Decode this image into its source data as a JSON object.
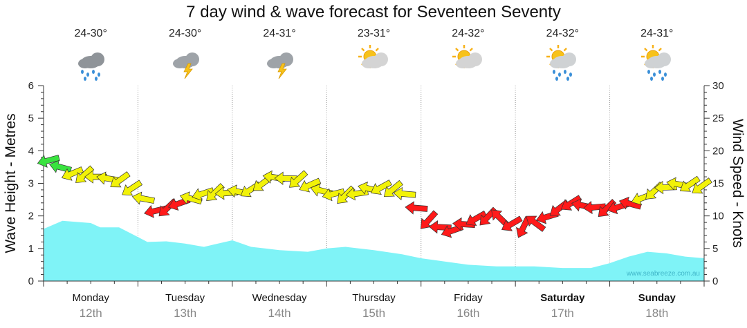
{
  "title": "7 day wind & wave forecast for Seventeen Seventy",
  "watermark": "www.seabreeze.com.au",
  "forecast": [
    {
      "temp": "24-30°",
      "icon": "rain-cloud-icon"
    },
    {
      "temp": "24-30°",
      "icon": "thunderstorm-icon"
    },
    {
      "temp": "24-31°",
      "icon": "thunderstorm-icon"
    },
    {
      "temp": "23-31°",
      "icon": "partly-sunny-icon"
    },
    {
      "temp": "24-32°",
      "icon": "partly-sunny-icon"
    },
    {
      "temp": "24-32°",
      "icon": "sun-shower-icon"
    },
    {
      "temp": "24-31°",
      "icon": "sun-shower-icon"
    }
  ],
  "chart_data": {
    "type": "area",
    "y_left_label": "Wave Height - Metres",
    "y_right_label": "Wind Speed - Knots",
    "ylim_left": [
      0,
      6
    ],
    "ylim_right": [
      0,
      30
    ],
    "y_left_ticks": [
      "0",
      "1",
      "2",
      "3",
      "4",
      "5",
      "6"
    ],
    "y_right_ticks": [
      "0",
      "5",
      "10",
      "15",
      "20",
      "25",
      "30"
    ],
    "days": [
      {
        "name": "Monday",
        "date": "12th",
        "bold": false
      },
      {
        "name": "Tuesday",
        "date": "13th",
        "bold": false
      },
      {
        "name": "Wednesday",
        "date": "14th",
        "bold": false
      },
      {
        "name": "Thursday",
        "date": "15th",
        "bold": false
      },
      {
        "name": "Friday",
        "date": "16th",
        "bold": false
      },
      {
        "name": "Saturday",
        "date": "17th",
        "bold": true
      },
      {
        "name": "Sunday",
        "date": "18th",
        "bold": true
      }
    ],
    "x_range_days": [
      0,
      7
    ],
    "wave_series": {
      "name": "Wave Height",
      "color": "#7ff3f7",
      "points": [
        [
          0,
          1.6
        ],
        [
          0.2,
          1.85
        ],
        [
          0.5,
          1.78
        ],
        [
          0.6,
          1.65
        ],
        [
          0.8,
          1.65
        ],
        [
          1.0,
          1.35
        ],
        [
          1.1,
          1.2
        ],
        [
          1.3,
          1.22
        ],
        [
          1.5,
          1.15
        ],
        [
          1.7,
          1.05
        ],
        [
          1.8,
          1.12
        ],
        [
          2.0,
          1.25
        ],
        [
          2.2,
          1.05
        ],
        [
          2.5,
          0.95
        ],
        [
          2.8,
          0.9
        ],
        [
          3.0,
          1.0
        ],
        [
          3.2,
          1.05
        ],
        [
          3.5,
          0.95
        ],
        [
          3.8,
          0.82
        ],
        [
          4.0,
          0.7
        ],
        [
          4.5,
          0.5
        ],
        [
          4.8,
          0.45
        ],
        [
          5.0,
          0.45
        ],
        [
          5.2,
          0.45
        ],
        [
          5.5,
          0.4
        ],
        [
          5.8,
          0.4
        ],
        [
          6.0,
          0.55
        ],
        [
          6.2,
          0.75
        ],
        [
          6.4,
          0.9
        ],
        [
          6.6,
          0.85
        ],
        [
          6.8,
          0.75
        ],
        [
          7.0,
          0.7
        ]
      ]
    },
    "wind_series": {
      "name": "Wind Speed",
      "points": [
        [
          0.05,
          18.5
        ],
        [
          0.3,
          16.5
        ],
        [
          0.55,
          16.0
        ],
        [
          0.8,
          15.5
        ],
        [
          1.0,
          13.5
        ],
        [
          1.2,
          10.5
        ],
        [
          1.45,
          12.0
        ],
        [
          1.7,
          13.5
        ],
        [
          1.95,
          13.5
        ],
        [
          2.2,
          14.0
        ],
        [
          2.45,
          16.0
        ],
        [
          2.7,
          15.5
        ],
        [
          3.0,
          13.5
        ],
        [
          3.25,
          13.0
        ],
        [
          3.5,
          14.5
        ],
        [
          3.8,
          13.8
        ],
        [
          4.05,
          9.5
        ],
        [
          4.3,
          7.5
        ],
        [
          4.55,
          9.5
        ],
        [
          4.8,
          10.0
        ],
        [
          5.05,
          8.0
        ],
        [
          5.3,
          9.5
        ],
        [
          5.55,
          12.0
        ],
        [
          5.75,
          11.5
        ],
        [
          6.0,
          11.0
        ],
        [
          6.25,
          12.0
        ],
        [
          6.5,
          14.0
        ],
        [
          6.75,
          15.0
        ],
        [
          6.97,
          14.5
        ]
      ],
      "colors": {
        "light": "#39e33f",
        "moderate": "#f2f208",
        "strong": "#ff1a1a"
      }
    }
  }
}
